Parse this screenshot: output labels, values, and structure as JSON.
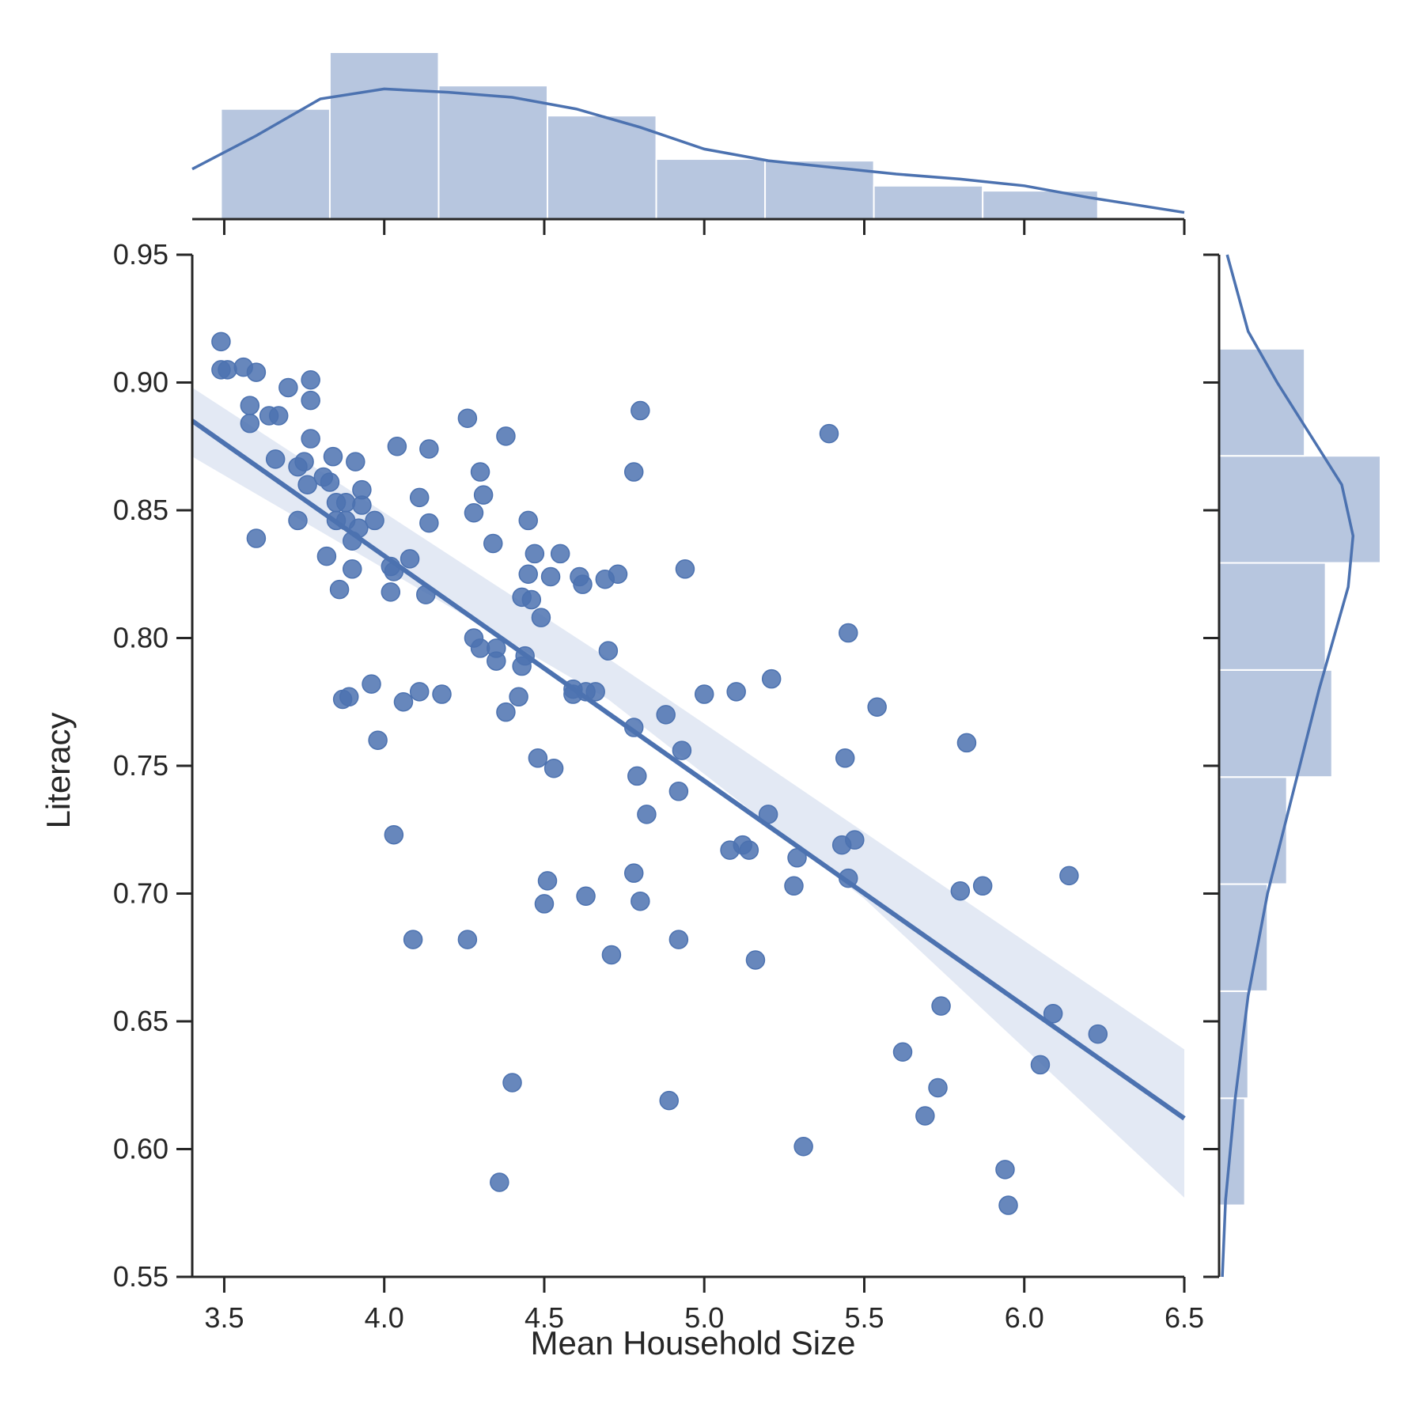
{
  "chart_data": {
    "type": "scatter",
    "title": "",
    "xlabel": "Mean Household Size",
    "ylabel": "Literacy",
    "xlim": [
      3.4,
      6.5
    ],
    "ylim": [
      0.55,
      0.95
    ],
    "x_ticks": [
      "3.5",
      "4.0",
      "4.5",
      "5.0",
      "5.5",
      "6.0",
      "6.5"
    ],
    "y_ticks": [
      "0.55",
      "0.60",
      "0.65",
      "0.70",
      "0.75",
      "0.80",
      "0.85",
      "0.90",
      "0.95"
    ],
    "grid": false,
    "colors": {
      "series": "#4c72b0",
      "hist_fill": "#b7c6df",
      "band": "#e3e9f4",
      "axis": "#262626"
    },
    "series": [
      {
        "points": [
          [
            3.49,
            0.916
          ],
          [
            3.49,
            0.905
          ],
          [
            3.51,
            0.905
          ],
          [
            3.56,
            0.906
          ],
          [
            3.6,
            0.904
          ],
          [
            3.58,
            0.891
          ],
          [
            3.58,
            0.884
          ],
          [
            3.64,
            0.887
          ],
          [
            3.67,
            0.887
          ],
          [
            3.7,
            0.898
          ],
          [
            3.77,
            0.901
          ],
          [
            3.77,
            0.893
          ],
          [
            3.77,
            0.878
          ],
          [
            3.66,
            0.87
          ],
          [
            3.73,
            0.867
          ],
          [
            3.75,
            0.869
          ],
          [
            3.76,
            0.86
          ],
          [
            3.84,
            0.871
          ],
          [
            3.91,
            0.869
          ],
          [
            3.81,
            0.863
          ],
          [
            3.83,
            0.861
          ],
          [
            3.93,
            0.858
          ],
          [
            3.85,
            0.853
          ],
          [
            3.88,
            0.853
          ],
          [
            3.93,
            0.852
          ],
          [
            3.85,
            0.846
          ],
          [
            3.88,
            0.846
          ],
          [
            3.92,
            0.843
          ],
          [
            3.97,
            0.846
          ],
          [
            3.73,
            0.846
          ],
          [
            3.9,
            0.838
          ],
          [
            3.6,
            0.839
          ],
          [
            3.82,
            0.832
          ],
          [
            3.9,
            0.827
          ],
          [
            3.86,
            0.819
          ],
          [
            4.02,
            0.828
          ],
          [
            4.03,
            0.826
          ],
          [
            4.08,
            0.831
          ],
          [
            4.02,
            0.818
          ],
          [
            4.13,
            0.817
          ],
          [
            3.87,
            0.776
          ],
          [
            3.89,
            0.777
          ],
          [
            3.96,
            0.782
          ],
          [
            3.98,
            0.76
          ],
          [
            4.04,
            0.875
          ],
          [
            4.11,
            0.855
          ],
          [
            4.14,
            0.874
          ],
          [
            4.14,
            0.845
          ],
          [
            4.06,
            0.775
          ],
          [
            4.11,
            0.779
          ],
          [
            4.18,
            0.778
          ],
          [
            4.03,
            0.723
          ],
          [
            4.09,
            0.682
          ],
          [
            4.26,
            0.886
          ],
          [
            4.3,
            0.865
          ],
          [
            4.31,
            0.856
          ],
          [
            4.28,
            0.849
          ],
          [
            4.38,
            0.879
          ],
          [
            4.34,
            0.837
          ],
          [
            4.28,
            0.8
          ],
          [
            4.3,
            0.796
          ],
          [
            4.35,
            0.796
          ],
          [
            4.35,
            0.791
          ],
          [
            4.38,
            0.771
          ],
          [
            4.42,
            0.777
          ],
          [
            4.43,
            0.816
          ],
          [
            4.45,
            0.846
          ],
          [
            4.47,
            0.833
          ],
          [
            4.45,
            0.825
          ],
          [
            4.46,
            0.815
          ],
          [
            4.49,
            0.808
          ],
          [
            4.44,
            0.793
          ],
          [
            4.43,
            0.789
          ],
          [
            4.48,
            0.753
          ],
          [
            4.53,
            0.749
          ],
          [
            4.26,
            0.682
          ],
          [
            4.51,
            0.705
          ],
          [
            4.5,
            0.696
          ],
          [
            4.4,
            0.626
          ],
          [
            4.36,
            0.587
          ],
          [
            4.52,
            0.824
          ],
          [
            4.55,
            0.833
          ],
          [
            4.61,
            0.824
          ],
          [
            4.62,
            0.821
          ],
          [
            4.69,
            0.823
          ],
          [
            4.73,
            0.825
          ],
          [
            4.59,
            0.78
          ],
          [
            4.59,
            0.778
          ],
          [
            4.63,
            0.779
          ],
          [
            4.66,
            0.779
          ],
          [
            4.7,
            0.795
          ],
          [
            4.63,
            0.699
          ],
          [
            4.71,
            0.676
          ],
          [
            4.8,
            0.889
          ],
          [
            4.78,
            0.865
          ],
          [
            4.78,
            0.765
          ],
          [
            4.79,
            0.746
          ],
          [
            4.82,
            0.731
          ],
          [
            4.78,
            0.708
          ],
          [
            4.8,
            0.697
          ],
          [
            4.88,
            0.77
          ],
          [
            4.93,
            0.756
          ],
          [
            4.92,
            0.74
          ],
          [
            4.92,
            0.682
          ],
          [
            4.89,
            0.619
          ],
          [
            4.94,
            0.827
          ],
          [
            5.0,
            0.778
          ],
          [
            5.1,
            0.779
          ],
          [
            5.21,
            0.784
          ],
          [
            5.08,
            0.717
          ],
          [
            5.12,
            0.719
          ],
          [
            5.14,
            0.717
          ],
          [
            5.2,
            0.731
          ],
          [
            5.29,
            0.714
          ],
          [
            5.28,
            0.703
          ],
          [
            5.16,
            0.674
          ],
          [
            5.31,
            0.601
          ],
          [
            5.39,
            0.88
          ],
          [
            5.45,
            0.802
          ],
          [
            5.54,
            0.773
          ],
          [
            5.44,
            0.753
          ],
          [
            5.43,
            0.719
          ],
          [
            5.47,
            0.721
          ],
          [
            5.45,
            0.706
          ],
          [
            5.62,
            0.638
          ],
          [
            5.74,
            0.656
          ],
          [
            5.73,
            0.624
          ],
          [
            5.69,
            0.613
          ],
          [
            5.82,
            0.759
          ],
          [
            5.8,
            0.701
          ],
          [
            5.87,
            0.703
          ],
          [
            6.14,
            0.707
          ],
          [
            6.09,
            0.653
          ],
          [
            6.05,
            0.633
          ],
          [
            6.23,
            0.645
          ],
          [
            5.94,
            0.592
          ],
          [
            5.95,
            0.578
          ]
        ]
      }
    ],
    "regression": {
      "x_range": [
        3.4,
        6.5
      ],
      "line": [
        [
          3.4,
          0.885
        ],
        [
          6.5,
          0.612
        ]
      ],
      "ci_upper": [
        [
          3.4,
          0.898
        ],
        [
          4.7,
          0.792
        ],
        [
          5.5,
          0.724
        ],
        [
          6.5,
          0.639
        ]
      ],
      "ci_lower": [
        [
          3.4,
          0.871
        ],
        [
          4.7,
          0.776
        ],
        [
          5.5,
          0.698
        ],
        [
          6.5,
          0.581
        ]
      ]
    },
    "marginal_x": {
      "bin_edges": [
        3.49,
        3.83,
        4.17,
        4.51,
        4.85,
        5.19,
        5.53,
        5.87,
        6.23
      ],
      "heights": [
        0.66,
        1.0,
        0.8,
        0.62,
        0.36,
        0.35,
        0.2,
        0.17
      ],
      "kde": [
        [
          3.4,
          0.3
        ],
        [
          3.6,
          0.5
        ],
        [
          3.8,
          0.72
        ],
        [
          4.0,
          0.78
        ],
        [
          4.2,
          0.76
        ],
        [
          4.4,
          0.73
        ],
        [
          4.6,
          0.66
        ],
        [
          4.8,
          0.55
        ],
        [
          5.0,
          0.42
        ],
        [
          5.2,
          0.35
        ],
        [
          5.4,
          0.31
        ],
        [
          5.6,
          0.27
        ],
        [
          5.8,
          0.24
        ],
        [
          6.0,
          0.2
        ],
        [
          6.2,
          0.13
        ],
        [
          6.5,
          0.04
        ]
      ]
    },
    "marginal_y": {
      "bin_edges": [
        0.578,
        0.6199,
        0.6618,
        0.7037,
        0.7456,
        0.7875,
        0.8294,
        0.8713,
        0.9132
      ],
      "heights": [
        0.16,
        0.18,
        0.3,
        0.42,
        0.7,
        0.66,
        1.0,
        0.53
      ],
      "kde": [
        [
          0.55,
          0.02
        ],
        [
          0.58,
          0.04
        ],
        [
          0.62,
          0.1
        ],
        [
          0.66,
          0.18
        ],
        [
          0.7,
          0.3
        ],
        [
          0.74,
          0.46
        ],
        [
          0.78,
          0.62
        ],
        [
          0.82,
          0.8
        ],
        [
          0.84,
          0.83
        ],
        [
          0.86,
          0.76
        ],
        [
          0.88,
          0.56
        ],
        [
          0.9,
          0.36
        ],
        [
          0.92,
          0.18
        ],
        [
          0.95,
          0.05
        ]
      ]
    }
  }
}
